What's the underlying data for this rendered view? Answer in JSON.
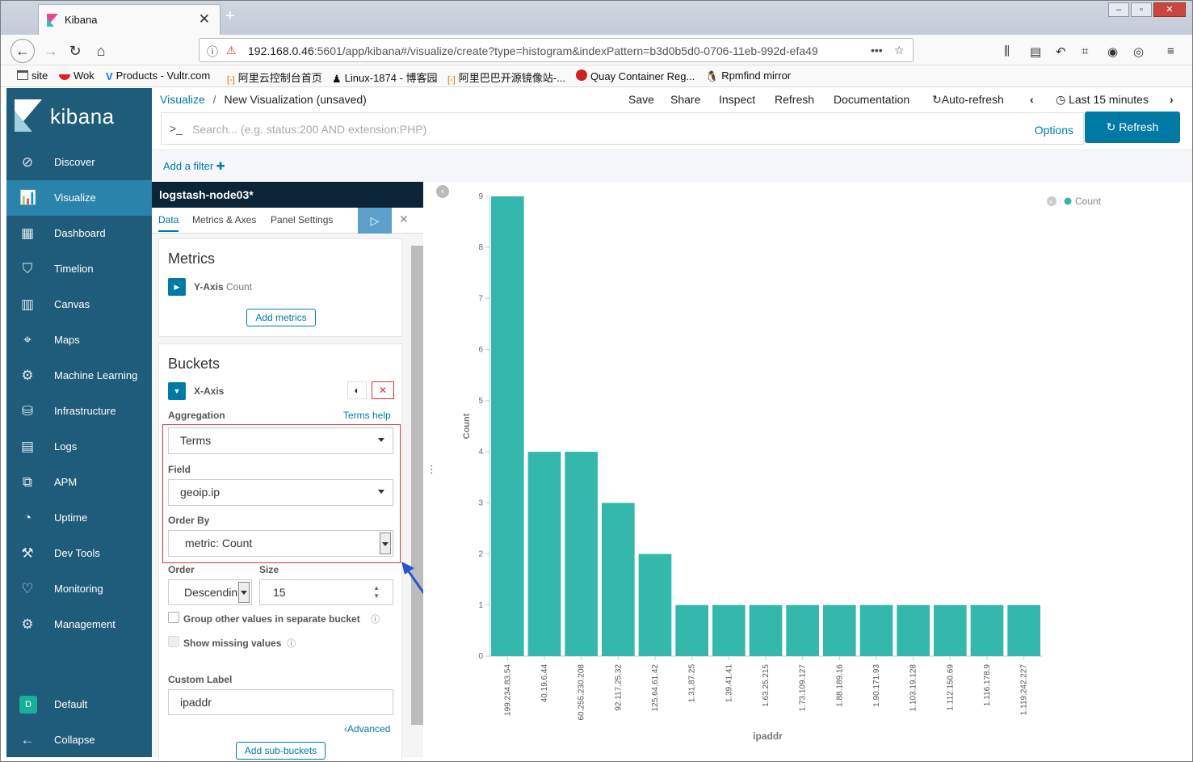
{
  "browser": {
    "tab_title": "Kibana",
    "url_host": "192.168.0.46",
    "url_rest": ":5601/app/kibana#/visualize/create?type=histogram&indexPattern=b3d0b5d0-0706-11eb-992d-efa49",
    "bookmarks": [
      {
        "label": "site"
      },
      {
        "label": "Wok"
      },
      {
        "label": "Products - Vultr.com"
      },
      {
        "label": "阿里云控制台首页"
      },
      {
        "label": "Linux-1874 - 博客园"
      },
      {
        "label": "阿里巴巴开源镜像站-..."
      },
      {
        "label": "Quay Container Reg..."
      },
      {
        "label": "Rpmfind mirror"
      }
    ]
  },
  "sidebar": {
    "brand": "kibana",
    "items": [
      {
        "label": "Discover",
        "icon": "compass-icon"
      },
      {
        "label": "Visualize",
        "icon": "visualize-icon"
      },
      {
        "label": "Dashboard",
        "icon": "dashboard-icon"
      },
      {
        "label": "Timelion",
        "icon": "timelion-icon"
      },
      {
        "label": "Canvas",
        "icon": "canvas-icon"
      },
      {
        "label": "Maps",
        "icon": "maps-icon"
      },
      {
        "label": "Machine Learning",
        "icon": "ml-icon"
      },
      {
        "label": "Infrastructure",
        "icon": "infrastructure-icon"
      },
      {
        "label": "Logs",
        "icon": "logs-icon"
      },
      {
        "label": "APM",
        "icon": "apm-icon"
      },
      {
        "label": "Uptime",
        "icon": "uptime-icon"
      },
      {
        "label": "Dev Tools",
        "icon": "devtools-icon"
      },
      {
        "label": "Monitoring",
        "icon": "monitoring-icon"
      },
      {
        "label": "Management",
        "icon": "gear-icon"
      }
    ],
    "space_badge": "D",
    "space_label": "Default",
    "collapse_label": "Collapse"
  },
  "topbar": {
    "breadcrumb_link": "Visualize",
    "breadcrumb_sep": "/",
    "breadcrumb_current": "New Visualization (unsaved)",
    "save": "Save",
    "share": "Share",
    "inspect": "Inspect",
    "refresh": "Refresh",
    "documentation": "Documentation",
    "auto_refresh": "Auto-refresh",
    "time_range": "Last 15 minutes"
  },
  "search": {
    "prompt": ">_",
    "placeholder": "Search... (e.g. status:200 AND extension:PHP)",
    "options": "Options",
    "refresh_button": "Refresh"
  },
  "filters": {
    "add_filter": "Add a filter"
  },
  "editor": {
    "index_title": "logstash-node03*",
    "tabs": [
      "Data",
      "Metrics & Axes",
      "Panel Settings"
    ],
    "metrics_heading": "Metrics",
    "yaxis_label": "Y-Axis",
    "yaxis_value": "Count",
    "add_metrics": "Add metrics",
    "buckets_heading": "Buckets",
    "xaxis_label": "X-Axis",
    "aggregation_label": "Aggregation",
    "terms_help": "Terms help",
    "aggregation_value": "Terms",
    "field_label": "Field",
    "field_value": "geoip.ip",
    "orderby_label": "Order By",
    "orderby_value": "metric: Count",
    "order_label": "Order",
    "order_value": "Descendin",
    "size_label": "Size",
    "size_value": "15",
    "group_other": "Group other values in separate bucket",
    "show_missing": "Show missing values",
    "custom_label_label": "Custom Label",
    "custom_label_value": "ipaddr",
    "advanced": "Advanced",
    "add_sub_buckets": "Add sub-buckets"
  },
  "chart_data": {
    "type": "bar",
    "categories": [
      "199.234.83.54",
      "40.19.6.44",
      "60.255.230.208",
      "92.117.25.32",
      "125.64.61.42",
      "1.31.87.25",
      "1.39.41.41",
      "1.63.25.215",
      "1.73.109.127",
      "1.88.189.16",
      "1.90.171.93",
      "1.103.19.128",
      "1.112.150.69",
      "1.116.178.9",
      "1.119.242.227"
    ],
    "values": [
      9,
      4,
      4,
      3,
      2,
      1,
      1,
      1,
      1,
      1,
      1,
      1,
      1,
      1,
      1
    ],
    "xlabel": "ipaddr",
    "ylabel": "Count",
    "ylim": [
      0,
      9
    ],
    "yticks": [
      "0",
      "1",
      "2",
      "3",
      "4",
      "5",
      "6",
      "7",
      "8",
      "9"
    ],
    "legend": "Count",
    "legend_position": "top-right",
    "bar_color": "#33b8ab"
  }
}
